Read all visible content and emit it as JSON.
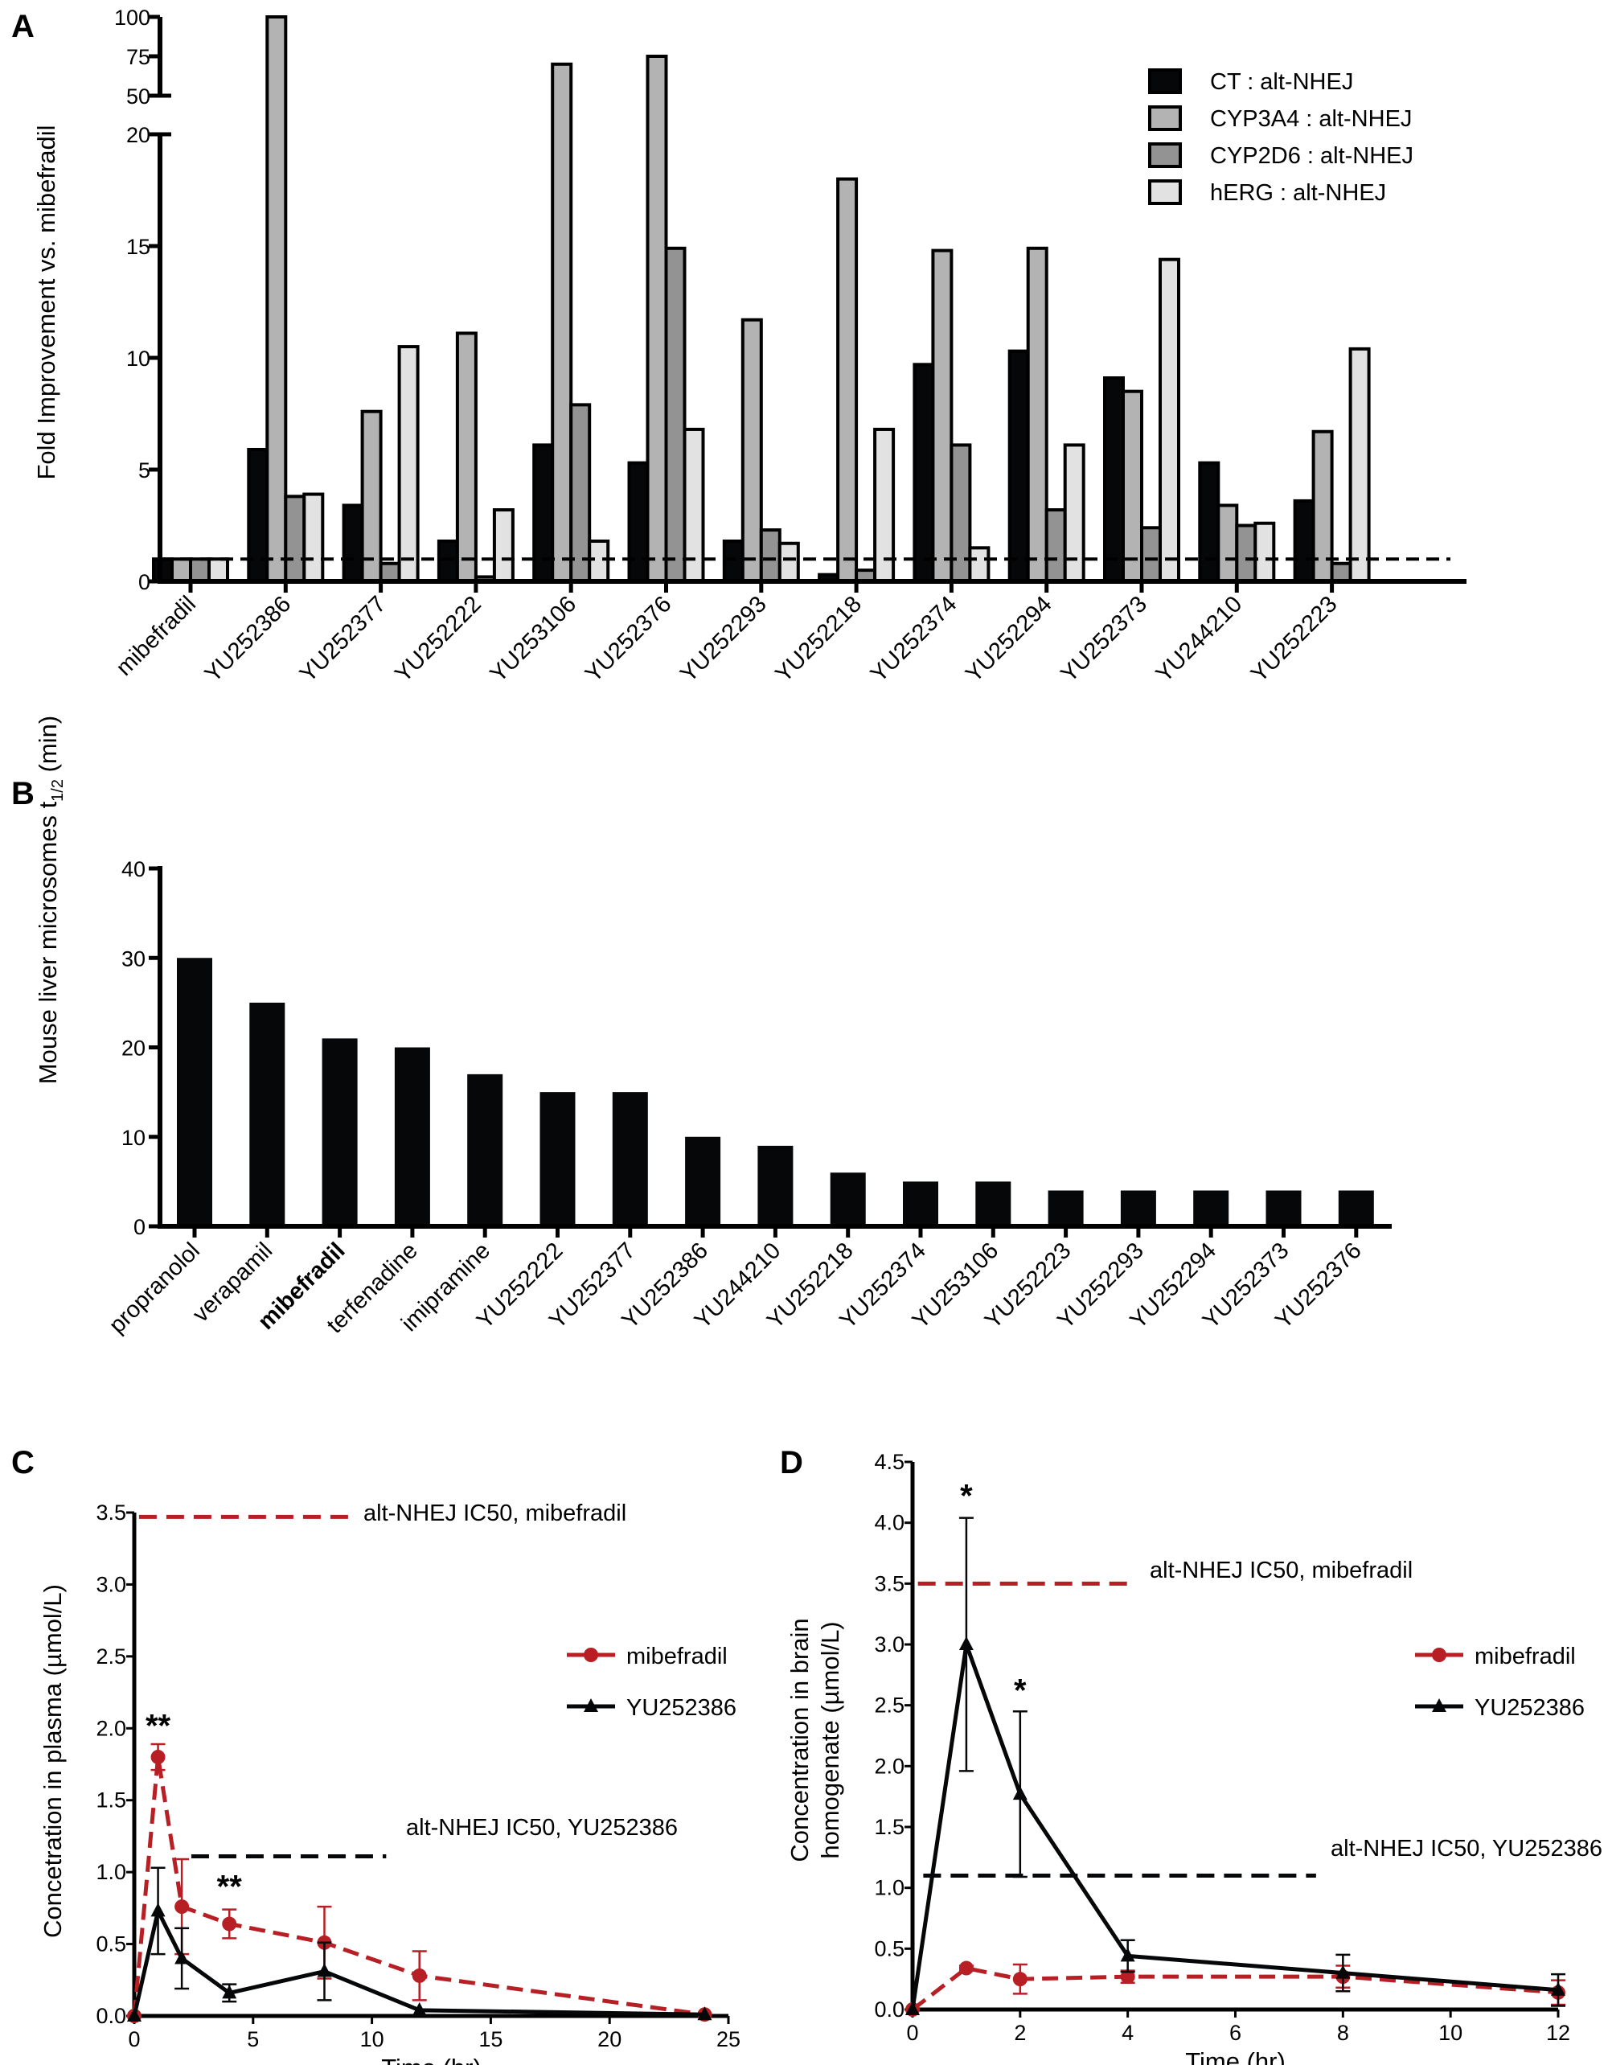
{
  "colors": {
    "black": "#050708",
    "cyp3a4": "#b3b3b3",
    "cyp2d6": "#939393",
    "herg": "#e2e2e2",
    "red": "#b81f25"
  },
  "chart_data": [
    {
      "panel": "A",
      "type": "bar",
      "ylabel": "Fold Improvement vs. mibefradil",
      "y_axis": "broken",
      "ylim_lower": [
        0,
        20
      ],
      "ylim_upper": [
        50,
        100
      ],
      "yticks_lower": [
        0,
        5,
        10,
        15,
        20
      ],
      "yticks_upper": [
        50,
        75,
        100
      ],
      "reference_line": 1,
      "legend_position": "top-right",
      "categories": [
        "mibefradil",
        "YU252386",
        "YU252377",
        "YU252222",
        "YU253106",
        "YU252376",
        "YU252293",
        "YU252218",
        "YU252374",
        "YU252294",
        "YU252373",
        "YU244210",
        "YU252223"
      ],
      "series": [
        {
          "name": "CT : alt-NHEJ",
          "color": "#050708",
          "values": [
            1,
            5.9,
            3.4,
            1.8,
            6.1,
            5.3,
            1.8,
            0.3,
            9.7,
            10.3,
            9.1,
            5.3,
            3.6
          ]
        },
        {
          "name": "CYP3A4 : alt-NHEJ",
          "color": "#b3b3b3",
          "values": [
            1,
            100,
            7.6,
            11.1,
            70,
            75,
            11.7,
            18.0,
            14.8,
            14.9,
            8.5,
            3.4,
            6.7
          ]
        },
        {
          "name": "CYP2D6 : alt-NHEJ",
          "color": "#939393",
          "values": [
            1,
            3.8,
            0.8,
            0.2,
            7.9,
            14.9,
            2.3,
            0.5,
            6.1,
            3.2,
            2.4,
            2.5,
            0.8
          ]
        },
        {
          "name": "hERG : alt-NHEJ",
          "color": "#e2e2e2",
          "values": [
            1,
            3.9,
            10.5,
            3.2,
            1.8,
            6.8,
            1.7,
            6.8,
            1.5,
            6.1,
            14.4,
            2.6,
            10.4
          ]
        }
      ]
    },
    {
      "panel": "B",
      "type": "bar",
      "ylabel_main": "Mouse liver microsomes t",
      "ylabel_sub": "1/2",
      "ylabel_tail": " (min)",
      "ylim": [
        0,
        40
      ],
      "yticks": [
        0,
        10,
        20,
        30,
        40
      ],
      "highlighted_category": "mibefradil",
      "categories": [
        "propranolol",
        "verapamil",
        "mibefradil",
        "terfenadine",
        "imipramine",
        "YU252222",
        "YU252377",
        "YU252386",
        "YU244210",
        "YU252218",
        "YU252374",
        "YU253106",
        "YU252223",
        "YU252293",
        "YU252294",
        "YU252373",
        "YU252376"
      ],
      "values": [
        30,
        25,
        21,
        20,
        17,
        15,
        15,
        10,
        9,
        6,
        5,
        5,
        4,
        4,
        4,
        4,
        4
      ]
    },
    {
      "panel": "C",
      "type": "line",
      "xlabel": "Time (hr)",
      "ylabel": "Concetration in plasma (µmol/L)",
      "xlim": [
        0,
        25
      ],
      "xticks": [
        0,
        5,
        10,
        15,
        20,
        25
      ],
      "ylim": [
        0,
        3.5
      ],
      "yticks": [
        "0.0",
        "0.5",
        "1.0",
        "1.5",
        "2.0",
        "2.5",
        "3.0",
        "3.5"
      ],
      "legend_position": "right",
      "series": [
        {
          "name": "mibefradil",
          "color": "#b81f25",
          "dashed": true,
          "marker": "circle",
          "x": [
            0,
            1,
            2,
            4,
            8,
            12,
            24
          ],
          "y": [
            0,
            1.8,
            0.76,
            0.64,
            0.51,
            0.28,
            0.01
          ],
          "err": [
            0,
            0.09,
            0.33,
            0.1,
            0.25,
            0.17,
            0
          ]
        },
        {
          "name": "YU252386",
          "color": "#050708",
          "dashed": false,
          "marker": "triangle",
          "x": [
            0,
            1,
            2,
            4,
            8,
            12,
            24
          ],
          "y": [
            0,
            0.73,
            0.4,
            0.16,
            0.31,
            0.04,
            0.01
          ],
          "err": [
            0,
            0.3,
            0.21,
            0.06,
            0.2,
            0,
            0
          ]
        }
      ],
      "reference_lines": [
        {
          "label": "alt-NHEJ IC50, mibefradil",
          "y": 3.47,
          "x_from": 0.2,
          "x_to": 9.1,
          "color": "#b81f25"
        },
        {
          "label": "alt-NHEJ IC50, YU252386",
          "y": 1.11,
          "x_from": 2.4,
          "x_to": 10.6,
          "color": "#050708"
        }
      ],
      "annotations": [
        {
          "text": "**",
          "x": 1,
          "y": 2.0
        },
        {
          "text": "**",
          "x": 4,
          "y": 0.88
        }
      ]
    },
    {
      "panel": "D",
      "type": "line",
      "xlabel": "Time (hr)",
      "ylabel_line1": "Concentration in brain",
      "ylabel_line2": "homogenate (µmol/L)",
      "xlim": [
        0,
        12
      ],
      "xticks": [
        0,
        2,
        4,
        6,
        8,
        10,
        12
      ],
      "ylim": [
        0,
        4.5
      ],
      "yticks": [
        "0.0",
        "0.5",
        "1.0",
        "1.5",
        "2.0",
        "2.5",
        "3.0",
        "3.5",
        "4.0",
        "4.5"
      ],
      "legend_position": "right",
      "series": [
        {
          "name": "mibefradil",
          "color": "#b81f25",
          "dashed": true,
          "marker": "circle",
          "x": [
            0,
            1,
            2,
            4,
            8,
            12
          ],
          "y": [
            0,
            0.34,
            0.25,
            0.27,
            0.27,
            0.14
          ],
          "err": [
            0,
            0.02,
            0.12,
            0.05,
            0.09,
            0.1
          ]
        },
        {
          "name": "YU252386",
          "color": "#050708",
          "dashed": false,
          "marker": "triangle",
          "x": [
            0,
            1,
            2,
            4,
            8,
            12
          ],
          "y": [
            0,
            3.0,
            1.77,
            0.44,
            0.3,
            0.16
          ],
          "err": [
            0,
            1.04,
            0.68,
            0.13,
            0.15,
            0.13
          ]
        }
      ],
      "reference_lines": [
        {
          "label": "alt-NHEJ IC50, mibefradil",
          "y": 3.5,
          "x_from": 0.1,
          "x_to": 4.1,
          "color": "#b81f25"
        },
        {
          "label": "alt-NHEJ IC50, YU252386",
          "y": 1.1,
          "x_from": 0.2,
          "x_to": 7.5,
          "color": "#050708"
        }
      ],
      "annotations": [
        {
          "text": "*",
          "x": 1,
          "y": 4.2
        },
        {
          "text": "*",
          "x": 2,
          "y": 2.6
        }
      ]
    }
  ]
}
